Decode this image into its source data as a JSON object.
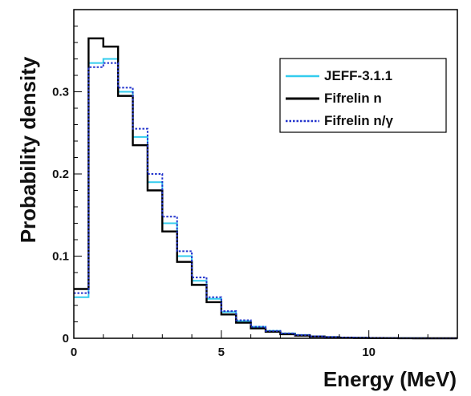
{
  "chart_data": {
    "type": "line",
    "title": "",
    "xlabel": "Energy (MeV)",
    "ylabel": "Probability density",
    "xlim": [
      0,
      13
    ],
    "ylim": [
      0,
      0.4
    ],
    "x_ticks": [
      0,
      5,
      10
    ],
    "x_tick_labels": [
      "0",
      "5",
      "10"
    ],
    "y_ticks": [
      0,
      0.1,
      0.2,
      0.3
    ],
    "y_tick_labels": [
      "0",
      "0.1",
      "0.2",
      "0.3"
    ],
    "grid": false,
    "legend_position": "top-right",
    "x": [
      0,
      0.5,
      1,
      1.5,
      2,
      2.5,
      3,
      3.5,
      4,
      4.5,
      5,
      5.5,
      6,
      6.5,
      7,
      7.5,
      8,
      8.5,
      9,
      9.5,
      10,
      10.5,
      11,
      11.5,
      12,
      12.5,
      13
    ],
    "series": [
      {
        "name": "JEFF-3.1.1",
        "color": "#33ccee",
        "style": "solid",
        "values": [
          0.05,
          0.335,
          0.34,
          0.3,
          0.245,
          0.19,
          0.14,
          0.1,
          0.07,
          0.048,
          0.032,
          0.021,
          0.014,
          0.009,
          0.006,
          0.004,
          0.0025,
          0.0016,
          0.001,
          0.0006,
          0.0004,
          0.0002,
          0.0001,
          0.0001,
          0,
          0,
          0
        ]
      },
      {
        "name": "Fifrelin n",
        "color": "#000000",
        "style": "solid",
        "values": [
          0.06,
          0.365,
          0.355,
          0.295,
          0.235,
          0.18,
          0.13,
          0.093,
          0.065,
          0.044,
          0.029,
          0.019,
          0.012,
          0.008,
          0.005,
          0.0033,
          0.0021,
          0.0013,
          0.0008,
          0.0005,
          0.0003,
          0.0002,
          0.0001,
          0,
          0,
          0,
          0
        ]
      },
      {
        "name": "Fifrelin n/γ",
        "color": "#2233cc",
        "style": "dotted",
        "values": [
          0.055,
          0.33,
          0.335,
          0.305,
          0.255,
          0.2,
          0.148,
          0.106,
          0.074,
          0.05,
          0.033,
          0.022,
          0.014,
          0.009,
          0.006,
          0.004,
          0.0025,
          0.0016,
          0.001,
          0.0006,
          0.0004,
          0.0002,
          0.0001,
          0.0001,
          0,
          0,
          0
        ]
      }
    ]
  }
}
